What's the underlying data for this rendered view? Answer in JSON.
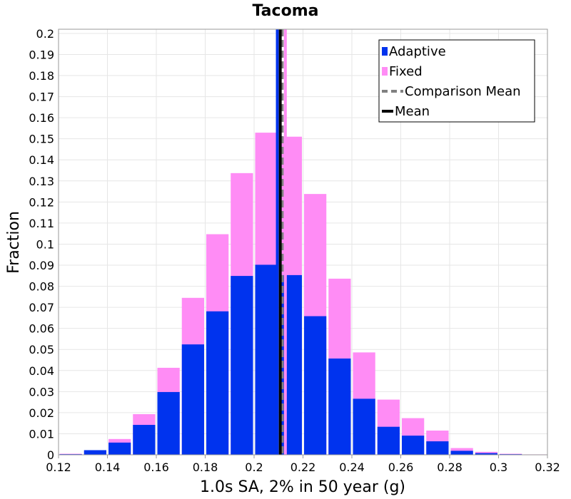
{
  "chart_data": {
    "type": "bar",
    "title": "Tacoma",
    "xlabel": "1.0s SA, 2% in 50 year (g)",
    "ylabel": "Fraction",
    "xlim": [
      0.12,
      0.32
    ],
    "ylim": [
      0,
      0.202
    ],
    "grid": true,
    "legend_position": "top-right",
    "bin_width": 0.01,
    "x_ticks": [
      "0.12",
      "0.14",
      "0.16",
      "0.18",
      "0.2",
      "0.22",
      "0.24",
      "0.26",
      "0.28",
      "0.3",
      "0.32"
    ],
    "y_ticks": [
      "0",
      "0.01",
      "0.02",
      "0.03",
      "0.04",
      "0.05",
      "0.06",
      "0.07",
      "0.08",
      "0.09",
      "0.1",
      "0.11",
      "0.12",
      "0.13",
      "0.14",
      "0.15",
      "0.16",
      "0.17",
      "0.18",
      "0.19",
      "0.2"
    ],
    "bin_centers": [
      0.125,
      0.135,
      0.145,
      0.155,
      0.165,
      0.175,
      0.185,
      0.195,
      0.205,
      0.215,
      0.225,
      0.235,
      0.245,
      0.255,
      0.265,
      0.275,
      0.285,
      0.295,
      0.305,
      0.315
    ],
    "series": [
      {
        "name": "Adaptive",
        "color": "#0033ee",
        "values": [
          0.0003,
          0.0022,
          0.0058,
          0.0142,
          0.0298,
          0.0524,
          0.0681,
          0.0849,
          0.0902,
          0.0853,
          0.0658,
          0.0457,
          0.0266,
          0.0133,
          0.0091,
          0.0064,
          0.0019,
          0.0008,
          0.0003,
          0.0001
        ]
      },
      {
        "name": "Fixed",
        "color": "#ff8cf5",
        "values": [
          0.0005,
          0.0016,
          0.0075,
          0.0193,
          0.0413,
          0.0745,
          0.1047,
          0.1337,
          0.1529,
          0.151,
          0.1238,
          0.0836,
          0.0486,
          0.0262,
          0.0174,
          0.0115,
          0.0032,
          0.0014,
          0.0005,
          0.0002
        ]
      }
    ],
    "vlines": [
      {
        "label": "Adaptive mean",
        "x": 0.2095,
        "color": "#0033ee",
        "style": "solid"
      },
      {
        "label": "Fixed mean",
        "x": 0.2128,
        "color": "#ff8cf5",
        "style": "solid"
      },
      {
        "label": "Comparison Mean",
        "x": 0.2115,
        "color": "#808080",
        "style": "dashed"
      },
      {
        "label": "Mean",
        "x": 0.2107,
        "color": "#000000",
        "style": "solid"
      }
    ],
    "legend": [
      {
        "label": "Adaptive",
        "color": "#0033ee",
        "kind": "box"
      },
      {
        "label": "Fixed",
        "color": "#ff8cf5",
        "kind": "box"
      },
      {
        "label": "Comparison Mean",
        "color": "#808080",
        "kind": "dash"
      },
      {
        "label": "Mean",
        "color": "#000000",
        "kind": "line"
      }
    ]
  }
}
